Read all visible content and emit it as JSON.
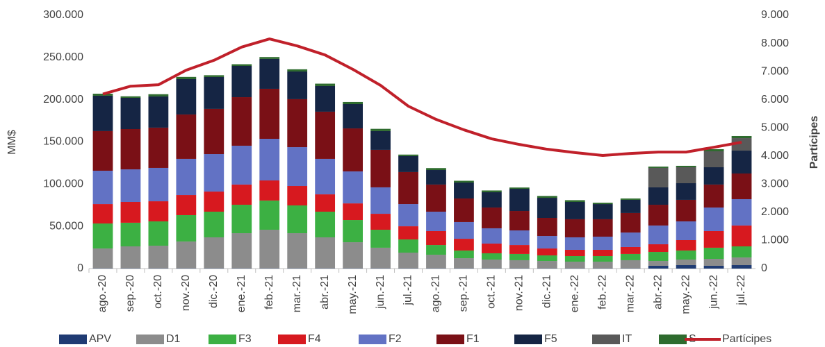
{
  "chart_data": {
    "type": "bar",
    "stacked": true,
    "y_label": "MM$",
    "y2_label": "Partícipes",
    "categories": [
      "ago.-20",
      "sep.-20",
      "oct.-20",
      "nov.-20",
      "dic.-20",
      "ene.-21",
      "feb.-21",
      "mar.-21",
      "abr.-21",
      "may.-21",
      "jun.-21",
      "jul.-21",
      "ago.-21",
      "sep.-21",
      "oct.-21",
      "nov.-21",
      "dic.-21",
      "ene.-22",
      "feb.-22",
      "mar.-22",
      "abr.-22",
      "may.-22",
      "jun.-22",
      "jul.-22"
    ],
    "series": [
      {
        "name": "APV",
        "color": "#1f3b73",
        "values": [
          300,
          300,
          300,
          300,
          300,
          300,
          300,
          300,
          300,
          300,
          300,
          300,
          300,
          300,
          300,
          300,
          300,
          300,
          300,
          300,
          3300,
          4100,
          3300,
          4100
        ]
      },
      {
        "name": "D1",
        "color": "#8c8c8c",
        "values": [
          23500,
          26000,
          26800,
          31800,
          36700,
          41600,
          45700,
          41600,
          36700,
          30900,
          24400,
          18600,
          16100,
          12000,
          10400,
          9600,
          8700,
          7900,
          7900,
          9600,
          5700,
          6600,
          8200,
          9100
        ]
      },
      {
        "name": "F3",
        "color": "#3cb043",
        "values": [
          29600,
          28000,
          28800,
          31200,
          30400,
          33700,
          34600,
          32900,
          30400,
          26300,
          21300,
          15600,
          11500,
          9100,
          7400,
          7400,
          6600,
          6600,
          6600,
          7400,
          10700,
          10700,
          13200,
          13100
        ]
      },
      {
        "name": "F4",
        "color": "#d7191f",
        "values": [
          23000,
          24600,
          23800,
          23800,
          23800,
          23900,
          23800,
          23000,
          20500,
          19700,
          18900,
          15600,
          16500,
          13900,
          11500,
          10600,
          8200,
          7400,
          7400,
          8200,
          9100,
          12300,
          19700,
          24700
        ]
      },
      {
        "name": "F2",
        "color": "#6272c4",
        "values": [
          39500,
          38600,
          39500,
          42800,
          44400,
          46000,
          49300,
          46000,
          42000,
          37900,
          31300,
          26300,
          23000,
          19800,
          18100,
          17300,
          14800,
          14800,
          15600,
          17200,
          22200,
          22200,
          27900,
          31200
        ]
      },
      {
        "name": "F1",
        "color": "#7a1016",
        "values": [
          46900,
          47700,
          47700,
          52600,
          53500,
          57500,
          59200,
          56800,
          55900,
          50900,
          44400,
          37900,
          32100,
          27900,
          24600,
          23000,
          21400,
          21400,
          20600,
          23100,
          24600,
          25500,
          27200,
          30400
        ]
      },
      {
        "name": "F5",
        "color": "#152544",
        "values": [
          41900,
          37000,
          37000,
          41900,
          37800,
          37000,
          35400,
          32800,
          30400,
          28800,
          22200,
          18900,
          17200,
          18900,
          18100,
          26300,
          23800,
          20500,
          18000,
          15600,
          20600,
          19700,
          20500,
          27100
        ]
      },
      {
        "name": "IT",
        "color": "#595959",
        "values": [
          0,
          0,
          0,
          0,
          0,
          0,
          0,
          0,
          0,
          0,
          0,
          0,
          0,
          0,
          0,
          0,
          0,
          0,
          0,
          0,
          23000,
          18900,
          18900,
          14800
        ]
      },
      {
        "name": "S",
        "color": "#2e6b2e",
        "values": [
          2400,
          1800,
          2600,
          2600,
          2100,
          2000,
          2200,
          2600,
          2800,
          2500,
          2700,
          1800,
          2300,
          2100,
          2100,
          1500,
          2200,
          2100,
          1600,
          1600,
          1600,
          1700,
          2500,
          2500
        ]
      },
      {
        "name": "Partícipes",
        "type": "line",
        "axis": "y2",
        "color": "#c0202a",
        "values": [
          6200,
          6480,
          6530,
          7050,
          7400,
          7870,
          8160,
          7910,
          7590,
          7080,
          6510,
          5770,
          5300,
          4930,
          4610,
          4410,
          4240,
          4120,
          4020,
          4090,
          4140,
          4140,
          4310,
          4490
        ]
      }
    ],
    "ylim": [
      0,
      300000
    ],
    "yticks": [
      0,
      {
        "value": 50000,
        "label": "50.000"
      },
      {
        "value": 100000,
        "label": "100.000"
      },
      {
        "value": 150000,
        "label": "150.000"
      },
      {
        "value": 200000,
        "label": "200.000"
      },
      {
        "value": 250000,
        "label": "250.000"
      },
      {
        "value": 300000,
        "label": "300.000"
      }
    ],
    "y2lim": [
      0,
      9000
    ],
    "y2ticks": [
      0,
      {
        "value": 1000,
        "label": "1.000"
      },
      {
        "value": 2000,
        "label": "2.000"
      },
      {
        "value": 3000,
        "label": "3.000"
      },
      {
        "value": 4000,
        "label": "4.000"
      },
      {
        "value": 5000,
        "label": "5.000"
      },
      {
        "value": 6000,
        "label": "6.000"
      },
      {
        "value": 7000,
        "label": "7.000"
      },
      {
        "value": 8000,
        "label": "8.000"
      },
      {
        "value": 9000,
        "label": "9.000"
      }
    ],
    "grid": false,
    "legend": "bottom"
  }
}
